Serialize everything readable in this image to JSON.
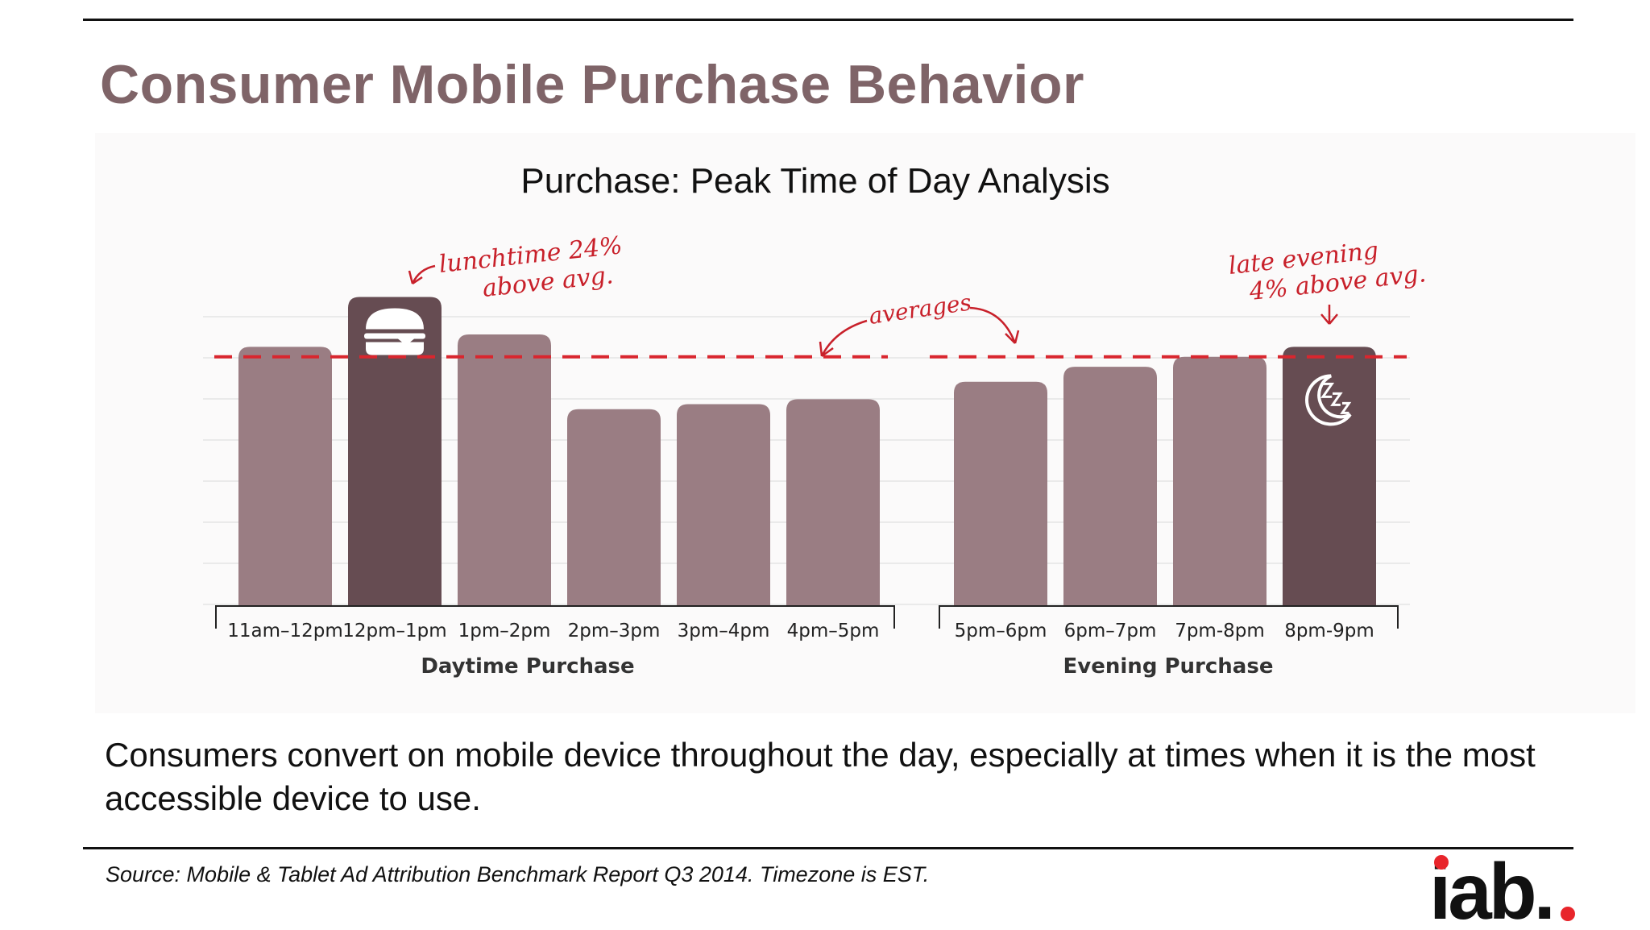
{
  "slide": {
    "title": "Consumer Mobile Purchase Behavior",
    "caption": "Consumers convert on mobile device throughout the day, especially at times when it is the most accessible device to use.",
    "source": "Source: Mobile & Tablet Ad Attribution Benchmark Report Q3 2014. Timezone is EST.",
    "logo_text": "iab."
  },
  "chart_data": {
    "type": "bar",
    "title": "Purchase: Peak Time of Day Analysis",
    "groups": [
      {
        "label": "Daytime Purchase",
        "categories": [
          "11am–12pm",
          "12pm–1pm",
          "1pm–2pm",
          "2pm–3pm",
          "3pm–4pm",
          "4pm–5pm"
        ],
        "values": [
          104,
          124,
          109,
          79,
          81,
          83
        ],
        "average": 100,
        "highlight_index": 1,
        "highlight_icon": "burger-icon"
      },
      {
        "label": "Evening Purchase",
        "categories": [
          "5pm–6pm",
          "6pm–7pm",
          "7pm-8pm",
          "8pm-9pm"
        ],
        "values": [
          90,
          96,
          100,
          104
        ],
        "average": 100,
        "highlight_index": 3,
        "highlight_icon": "sleep-moon-icon"
      }
    ],
    "annotations": {
      "lunch": [
        "lunchtime 24%",
        "above avg."
      ],
      "averages": "averages",
      "evening": [
        "late evening",
        "4% above avg."
      ]
    },
    "ylim": [
      0,
      130
    ],
    "grid": true,
    "legend": "none",
    "colors": {
      "bar": "#9a7d83",
      "highlight": "#664c52",
      "average_line": "#d9262e",
      "annotation": "#c8202a",
      "grid": "#e5e5e5"
    }
  }
}
